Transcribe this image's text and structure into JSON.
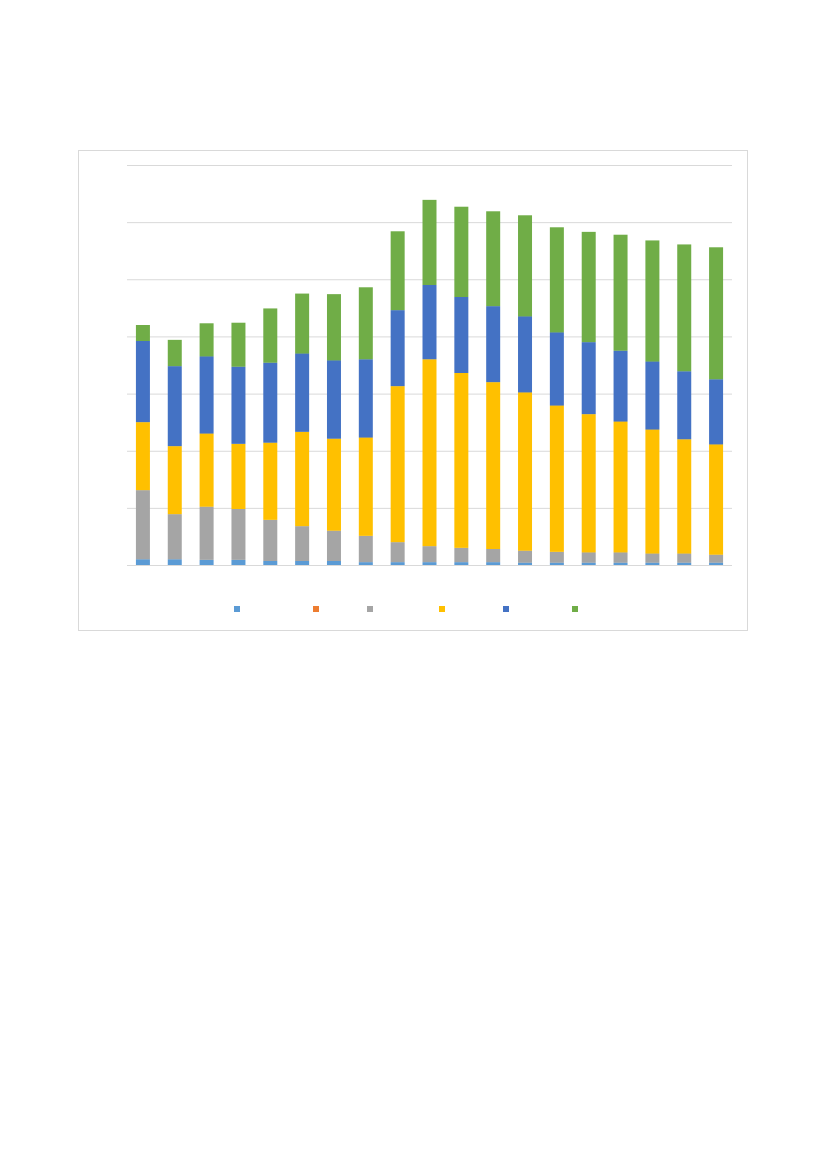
{
  "chart_data": {
    "type": "stacked_bar",
    "categories": [
      null,
      null,
      null,
      null,
      null,
      null,
      null,
      null,
      null,
      null,
      null,
      null,
      null,
      null,
      null,
      null,
      null,
      null,
      null
    ],
    "series": [
      {
        "color": "#5b9bd5",
        "values": [
          0.1,
          0.1,
          0.09,
          0.09,
          0.07,
          0.07,
          0.07,
          0.05,
          0.05,
          0.05,
          0.05,
          0.05,
          0.04,
          0.04,
          0.04,
          0.04,
          0.04,
          0.04,
          0.04
        ]
      },
      {
        "color": "#ed7d31",
        "values": [
          0,
          0,
          0,
          0,
          0,
          0,
          0,
          0,
          0,
          0,
          0,
          0,
          0,
          0,
          0,
          0,
          0,
          0,
          0
        ]
      },
      {
        "color": "#a5a5a5",
        "values": [
          1.21,
          0.79,
          0.93,
          0.89,
          0.72,
          0.61,
          0.53,
          0.46,
          0.35,
          0.28,
          0.25,
          0.23,
          0.21,
          0.19,
          0.18,
          0.18,
          0.16,
          0.16,
          0.14
        ]
      },
      {
        "color": "#ffc000",
        "values": [
          1.19,
          1.19,
          1.28,
          1.14,
          1.35,
          1.65,
          1.61,
          1.72,
          2.73,
          3.27,
          3.06,
          2.92,
          2.77,
          2.56,
          2.42,
          2.29,
          2.17,
          2.0,
          1.93
        ]
      },
      {
        "color": "#4472c4",
        "values": [
          1.42,
          1.4,
          1.35,
          1.35,
          1.4,
          1.37,
          1.37,
          1.37,
          1.33,
          1.3,
          1.33,
          1.33,
          1.33,
          1.28,
          1.26,
          1.24,
          1.19,
          1.19,
          1.14
        ]
      },
      {
        "color": "#70ad47",
        "values": [
          0.28,
          0.46,
          0.58,
          0.77,
          0.95,
          1.05,
          1.16,
          1.26,
          1.38,
          1.49,
          1.58,
          1.66,
          1.77,
          1.84,
          1.93,
          2.03,
          2.12,
          2.22,
          2.31
        ]
      }
    ],
    "ylim": [
      0,
      7
    ],
    "yticks": [
      0,
      1,
      2,
      3,
      4,
      5,
      6,
      7
    ],
    "grid": true
  }
}
